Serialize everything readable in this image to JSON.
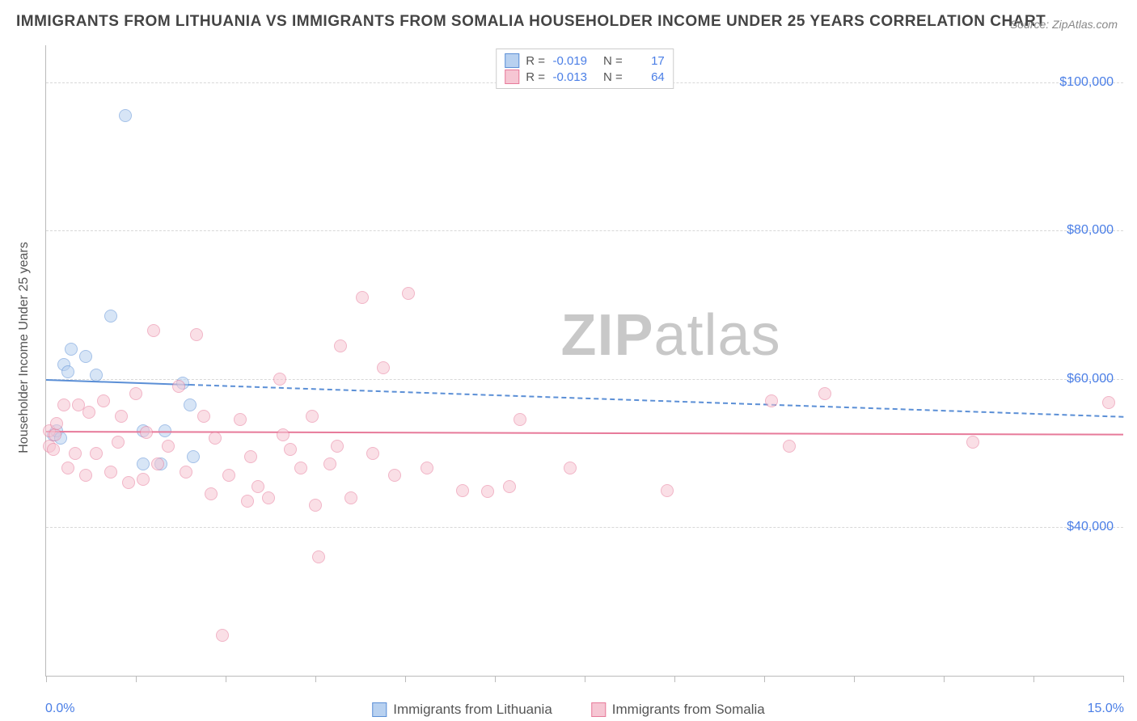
{
  "title": "IMMIGRANTS FROM LITHUANIA VS IMMIGRANTS FROM SOMALIA HOUSEHOLDER INCOME UNDER 25 YEARS CORRELATION CHART",
  "source_label": "Source: ",
  "source_value": "ZipAtlas.com",
  "y_axis_title": "Householder Income Under 25 years",
  "watermark_bold": "ZIP",
  "watermark_rest": "atlas",
  "chart": {
    "type": "scatter",
    "xlim": [
      0,
      15
    ],
    "ylim": [
      20000,
      105000
    ],
    "x_tick_label_min": "0.0%",
    "x_tick_label_max": "15.0%",
    "x_tick_positions": [
      0,
      1.25,
      2.5,
      3.75,
      5.0,
      6.25,
      7.5,
      8.75,
      10.0,
      11.25,
      12.5,
      13.75,
      15.0
    ],
    "y_ticks": [
      {
        "v": 40000,
        "label": "$40,000"
      },
      {
        "v": 60000,
        "label": "$60,000"
      },
      {
        "v": 80000,
        "label": "$80,000"
      },
      {
        "v": 100000,
        "label": "$100,000"
      }
    ],
    "background_color": "#ffffff",
    "grid_color": "#d8d8d8",
    "axis_color": "#bbbbbb",
    "title_color": "#444444",
    "title_fontsize": 19,
    "tick_label_color": "#4a7ee6",
    "tick_fontsize": 16,
    "marker_radius": 8,
    "marker_stroke_width": 1.2,
    "trend_line_width": 2,
    "series": [
      {
        "name": "Immigrants from Lithuania",
        "fill": "#b8d1f0",
        "stroke": "#5b8fd6",
        "fill_opacity": 0.55,
        "R": "-0.019",
        "N": "17",
        "trend": {
          "y0": 60000,
          "y1": 55000,
          "solid_until_x": 2.0
        },
        "points": [
          [
            0.1,
            52500
          ],
          [
            0.15,
            53000
          ],
          [
            0.2,
            52000
          ],
          [
            0.25,
            62000
          ],
          [
            0.3,
            61000
          ],
          [
            0.35,
            64000
          ],
          [
            0.55,
            63000
          ],
          [
            0.7,
            60500
          ],
          [
            0.9,
            68500
          ],
          [
            1.1,
            95500
          ],
          [
            1.35,
            48500
          ],
          [
            1.35,
            53000
          ],
          [
            1.6,
            48500
          ],
          [
            1.65,
            53000
          ],
          [
            1.9,
            59500
          ],
          [
            2.0,
            56500
          ],
          [
            2.05,
            49500
          ]
        ]
      },
      {
        "name": "Immigrants from Somalia",
        "fill": "#f6c6d3",
        "stroke": "#e77a9a",
        "fill_opacity": 0.55,
        "R": "-0.013",
        "N": "64",
        "trend": {
          "y0": 53000,
          "y1": 52600,
          "solid_until_x": 15.0
        },
        "points": [
          [
            0.05,
            51000
          ],
          [
            0.05,
            53000
          ],
          [
            0.1,
            50500
          ],
          [
            0.12,
            52500
          ],
          [
            0.15,
            54000
          ],
          [
            0.25,
            56500
          ],
          [
            0.3,
            48000
          ],
          [
            0.4,
            50000
          ],
          [
            0.45,
            56500
          ],
          [
            0.55,
            47000
          ],
          [
            0.6,
            55500
          ],
          [
            0.7,
            50000
          ],
          [
            0.8,
            57000
          ],
          [
            0.9,
            47500
          ],
          [
            1.0,
            51500
          ],
          [
            1.05,
            55000
          ],
          [
            1.15,
            46000
          ],
          [
            1.25,
            58000
          ],
          [
            1.35,
            46500
          ],
          [
            1.4,
            52800
          ],
          [
            1.5,
            66500
          ],
          [
            1.55,
            48500
          ],
          [
            1.7,
            51000
          ],
          [
            1.85,
            59000
          ],
          [
            1.95,
            47500
          ],
          [
            2.1,
            66000
          ],
          [
            2.2,
            55000
          ],
          [
            2.3,
            44500
          ],
          [
            2.35,
            52000
          ],
          [
            2.45,
            25500
          ],
          [
            2.55,
            47000
          ],
          [
            2.7,
            54500
          ],
          [
            2.8,
            43500
          ],
          [
            2.85,
            49500
          ],
          [
            2.95,
            45500
          ],
          [
            3.1,
            44000
          ],
          [
            3.25,
            60000
          ],
          [
            3.3,
            52500
          ],
          [
            3.4,
            50500
          ],
          [
            3.55,
            48000
          ],
          [
            3.7,
            55000
          ],
          [
            3.75,
            43000
          ],
          [
            3.8,
            36000
          ],
          [
            3.95,
            48500
          ],
          [
            4.05,
            51000
          ],
          [
            4.1,
            64500
          ],
          [
            4.25,
            44000
          ],
          [
            4.4,
            71000
          ],
          [
            4.55,
            50000
          ],
          [
            4.7,
            61500
          ],
          [
            4.85,
            47000
          ],
          [
            5.05,
            71500
          ],
          [
            5.3,
            48000
          ],
          [
            5.8,
            45000
          ],
          [
            6.15,
            44800
          ],
          [
            6.45,
            45500
          ],
          [
            6.6,
            54500
          ],
          [
            7.3,
            48000
          ],
          [
            8.65,
            45000
          ],
          [
            10.1,
            57000
          ],
          [
            10.35,
            51000
          ],
          [
            10.85,
            58000
          ],
          [
            14.8,
            56800
          ],
          [
            12.9,
            51500
          ]
        ]
      }
    ],
    "legend_top": {
      "R_label": "R = ",
      "N_label": "N = "
    },
    "legend_bottom": [
      {
        "series": 0
      },
      {
        "series": 1
      }
    ]
  }
}
